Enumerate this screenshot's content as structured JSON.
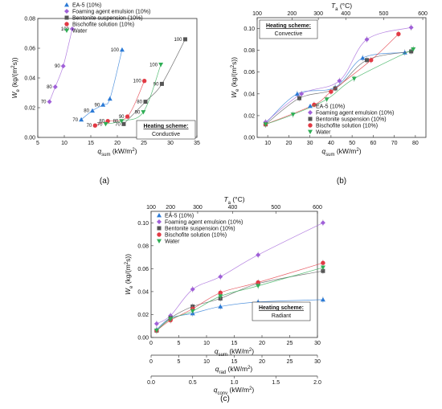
{
  "captions": [
    "(a)",
    "(b)",
    "(c)"
  ],
  "axis_labels": {
    "we": "W",
    "we_sub": "e",
    "we_unit": " (kg/(m",
    "we_unit2": "s))",
    "qsum": "q",
    "qsum_sub": "sum",
    "qsum_unit": " (kW/m",
    "qrad_sub": "rad",
    "qconv_sub": "conv",
    "ta": "T",
    "ta_sub": "a",
    "ta_unit": " (°C)"
  },
  "series_styles": [
    {
      "name": "EA-5 (10%)",
      "color": "#2b7ad6",
      "marker": "triangle-up"
    },
    {
      "name": "Foaming agent emulsion (10%)",
      "color": "#a060d8",
      "marker": "diamond"
    },
    {
      "name": "Bentonite suspension (10%)",
      "color": "#555555",
      "marker": "square"
    },
    {
      "name": "Bischofite solution (10%)",
      "color": "#e23a44",
      "marker": "circle"
    },
    {
      "name": "Water",
      "color": "#2fae55",
      "marker": "triangle-down"
    }
  ],
  "chart_data": [
    {
      "type": "line",
      "caption": "(a)",
      "xlabel": "q_sum (kW/m2)",
      "ylabel": "W_e (kg/(m2s))",
      "xlim": [
        5,
        35
      ],
      "ylim": [
        0,
        0.08
      ],
      "xticks": [
        5,
        10,
        15,
        20,
        25,
        30,
        35
      ],
      "yticks": [
        0.0,
        0.02,
        0.04,
        0.06,
        0.08
      ],
      "heating_scheme": {
        "title": "Heating scheme:",
        "value": "Conductive"
      },
      "legend_position": "top-left",
      "series": [
        {
          "name": "EA-5 (10%)",
          "x": [
            13.2,
            15.3,
            17.3,
            18.6,
            20.9
          ],
          "y": [
            0.012,
            0.018,
            0.022,
            0.026,
            0.059
          ],
          "labels": [
            "70",
            "80",
            "90",
            "",
            "100"
          ]
        },
        {
          "name": "Foaming agent emulsion (10%)",
          "x": [
            7.2,
            8.3,
            9.8,
            11.5
          ],
          "y": [
            0.024,
            0.034,
            0.048,
            0.073
          ],
          "labels": [
            "70",
            "80",
            "90",
            "100"
          ]
        },
        {
          "name": "Bentonite suspension (10%)",
          "x": [
            21.2,
            25.3,
            28.4,
            32.8
          ],
          "y": [
            0.009,
            0.024,
            0.036,
            0.066
          ],
          "labels": [
            "70",
            "80",
            "90",
            "100"
          ]
        },
        {
          "name": "Bischofite solution (10%)",
          "x": [
            15.8,
            18.2,
            21.9,
            25.1
          ],
          "y": [
            0.008,
            0.011,
            0.014,
            0.038
          ],
          "labels": [
            "70",
            "80",
            "90",
            "100"
          ]
        },
        {
          "name": "Water",
          "x": [
            17.8,
            20.8,
            24.9,
            28.2
          ],
          "y": [
            0.009,
            0.011,
            0.017,
            0.049
          ],
          "labels": [
            "70",
            "80",
            "90",
            "100"
          ]
        }
      ]
    },
    {
      "type": "line",
      "caption": "(b)",
      "xlabel": "q_sum (kW/m2)",
      "ylabel": "W_e (kg/(m2s))",
      "top_axis_label": "T_a (°C)",
      "xlim": [
        5,
        85
      ],
      "ylim": [
        0,
        0.11
      ],
      "xticks": [
        10,
        20,
        30,
        40,
        50,
        60,
        70,
        80
      ],
      "yticks": [
        0.0,
        0.02,
        0.04,
        0.06,
        0.08,
        0.1
      ],
      "top_ticks": [
        {
          "label": "100",
          "x": 5.0
        },
        {
          "label": "200",
          "x": 21.5
        },
        {
          "label": "300",
          "x": 34.0
        },
        {
          "label": "400",
          "x": 47.0
        },
        {
          "label": "500",
          "x": 65.0
        },
        {
          "label": "600",
          "x": 83.5
        }
      ],
      "heating_scheme": {
        "title": "Heating scheme:",
        "value": "Convective"
      },
      "legend_position": "bottom-right",
      "series": [
        {
          "name": "EA-5 (10%)",
          "x": [
            9,
            24,
            42,
            55,
            75
          ],
          "y": [
            0.013,
            0.04,
            0.046,
            0.073,
            0.078
          ]
        },
        {
          "name": "Foaming agent emulsion (10%)",
          "x": [
            9,
            26,
            44,
            57,
            78
          ],
          "y": [
            0.014,
            0.04,
            0.052,
            0.09,
            0.101
          ]
        },
        {
          "name": "Bentonite suspension (10%)",
          "x": [
            9,
            25,
            42,
            57,
            78
          ],
          "y": [
            0.012,
            0.036,
            0.045,
            0.071,
            0.079
          ]
        },
        {
          "name": "Bischofite solution (10%)",
          "x": [
            9,
            32,
            40,
            59,
            72
          ],
          "y": [
            0.012,
            0.03,
            0.042,
            0.071,
            0.095
          ]
        },
        {
          "name": "Water",
          "x": [
            9,
            22,
            38,
            51,
            79
          ],
          "y": [
            0.012,
            0.021,
            0.035,
            0.054,
            0.081
          ]
        }
      ]
    },
    {
      "type": "line",
      "caption": "(c)",
      "xlabel": "q_sum (kW/m2)",
      "xlabel2": "q_rad (kW/m2)",
      "xlabel3": "q_conv (kW/m2)",
      "ylabel": "W_e (kg/(m2s))",
      "top_axis_label": "T_a (°C)",
      "xlim": [
        0,
        30
      ],
      "ylim": [
        0,
        0.11
      ],
      "xticks": [
        0,
        5,
        10,
        15,
        20,
        25,
        30
      ],
      "xticks2": [
        0,
        5,
        10,
        15,
        20,
        25,
        30
      ],
      "xticks3": [
        {
          "label": "0.0",
          "x": 0
        },
        {
          "label": "0.5",
          "x": 7.5
        },
        {
          "label": "1.0",
          "x": 15
        },
        {
          "label": "1.5",
          "x": 22.5
        },
        {
          "label": "2.0",
          "x": 30
        }
      ],
      "yticks": [
        0.0,
        0.02,
        0.04,
        0.06,
        0.08,
        0.1
      ],
      "top_ticks": [
        {
          "label": "100",
          "x": 0.0
        },
        {
          "label": "200",
          "x": 3.5
        },
        {
          "label": "300",
          "x": 8.4
        },
        {
          "label": "400",
          "x": 14.7
        },
        {
          "label": "500",
          "x": 22.5
        },
        {
          "label": "600",
          "x": 31.5
        }
      ],
      "heating_scheme": {
        "title": "Heating scheme:",
        "value": "Radiant"
      },
      "legend_position": "top-left",
      "series": [
        {
          "name": "EA-5 (10%)",
          "x": [
            1,
            3.5,
            7.5,
            12.5,
            19.3,
            31
          ],
          "y": [
            0.007,
            0.017,
            0.021,
            0.027,
            0.031,
            0.033
          ]
        },
        {
          "name": "Foaming agent emulsion (10%)",
          "x": [
            1,
            3.5,
            7.5,
            12.5,
            19.3,
            31
          ],
          "y": [
            0.012,
            0.019,
            0.042,
            0.053,
            0.072,
            0.1
          ]
        },
        {
          "name": "Bentonite suspension (10%)",
          "x": [
            1,
            3.5,
            7.5,
            12.5,
            19.3,
            31
          ],
          "y": [
            0.006,
            0.017,
            0.027,
            0.034,
            0.047,
            0.058
          ]
        },
        {
          "name": "Bischofite solution (10%)",
          "x": [
            1,
            3.5,
            7.5,
            12.5,
            19.3,
            31
          ],
          "y": [
            0.006,
            0.015,
            0.025,
            0.039,
            0.048,
            0.065
          ]
        },
        {
          "name": "Water",
          "x": [
            1,
            3.5,
            7.5,
            12.5,
            19.3,
            31
          ],
          "y": [
            0.006,
            0.016,
            0.023,
            0.036,
            0.045,
            0.061
          ]
        }
      ]
    }
  ]
}
